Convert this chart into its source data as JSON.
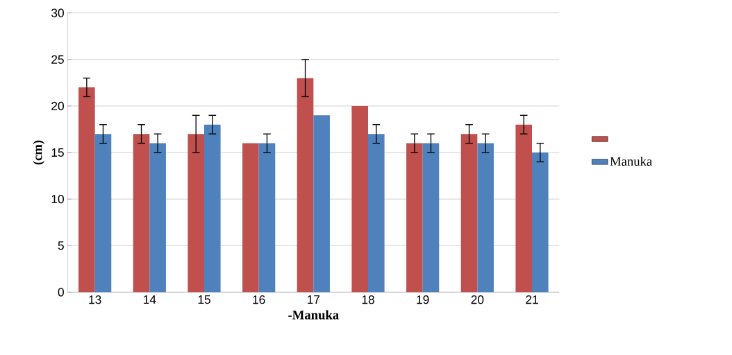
{
  "chart_data": {
    "type": "bar",
    "ylabel": "(cm)",
    "xlabel": "-Manuka",
    "categories": [
      "13",
      "14",
      "15",
      "16",
      "17",
      "18",
      "19",
      "20",
      "21"
    ],
    "series": [
      {
        "color": "#c0504d",
        "values": [
          22,
          17,
          17,
          16,
          23,
          20,
          16,
          17,
          18
        ],
        "errors": [
          1,
          1,
          2,
          null,
          2,
          null,
          1,
          1,
          1
        ]
      },
      {
        "name": "Manuka",
        "color": "#4f81bd",
        "values": [
          17,
          16,
          18,
          16,
          19,
          17,
          16,
          16,
          15
        ],
        "errors": [
          1,
          1,
          1,
          1,
          null,
          1,
          1,
          1,
          1
        ]
      }
    ],
    "ylim": [
      0,
      30
    ],
    "yticks": [
      0,
      5,
      10,
      15,
      20,
      25,
      30
    ],
    "grid": "y",
    "legend": "right"
  }
}
